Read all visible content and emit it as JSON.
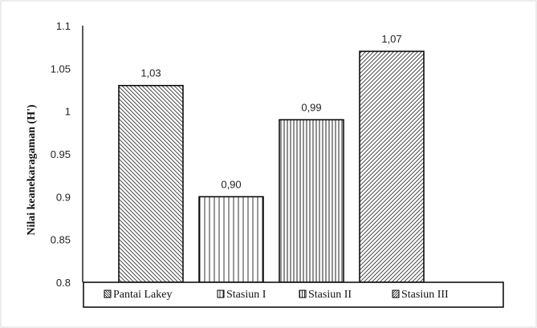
{
  "chart_data": {
    "type": "bar",
    "categories": [
      "Pantai Lakey",
      "Stasiun I",
      "Stasiun II",
      "Stasiun III"
    ],
    "values": [
      1.03,
      0.9,
      0.99,
      1.07
    ],
    "data_labels": [
      "1,03",
      "0,90",
      "0,99",
      "1,07"
    ],
    "title": "",
    "xlabel": "",
    "ylabel": "Nilai keanekaragaman (H')",
    "ylim": [
      0.8,
      1.1
    ],
    "yticks": [
      0.8,
      0.85,
      0.9,
      0.95,
      1,
      1.05,
      1.1
    ],
    "ytick_labels": [
      "0.8",
      "0.85",
      "0.9",
      "0.95",
      "1",
      "1.05",
      "1.1"
    ],
    "grid": false,
    "legend_position": "bottom",
    "patterns": [
      "diagonal-backslash",
      "vertical-sparse",
      "vertical-dense",
      "diagonal-slash"
    ],
    "bar_fill": "#ffffff",
    "bar_stroke": "#000000"
  }
}
